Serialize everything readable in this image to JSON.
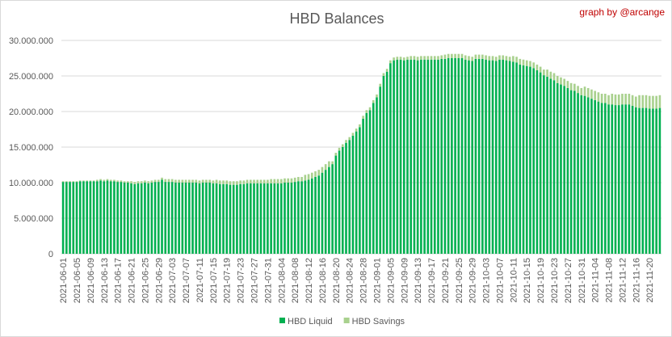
{
  "chart_data": {
    "type": "bar",
    "stacked": true,
    "title": "HBD Balances",
    "credit": "graph by @arcange",
    "xlabel": "",
    "ylabel": "",
    "ylim": [
      0,
      30000000
    ],
    "y_ticks": [
      "0",
      "5.000.000",
      "10.000.000",
      "15.000.000",
      "20.000.000",
      "25.000.000",
      "30.000.000"
    ],
    "y_tick_values": [
      0,
      5000000,
      10000000,
      15000000,
      20000000,
      25000000,
      30000000
    ],
    "x_tick_labels": [
      "2021-06-01",
      "2021-06-05",
      "2021-06-09",
      "2021-06-13",
      "2021-06-17",
      "2021-06-21",
      "2021-06-25",
      "2021-06-29",
      "2021-07-03",
      "2021-07-07",
      "2021-07-11",
      "2021-07-15",
      "2021-07-19",
      "2021-07-23",
      "2021-07-27",
      "2021-07-31",
      "2021-08-04",
      "2021-08-08",
      "2021-08-12",
      "2021-08-16",
      "2021-08-20",
      "2021-08-24",
      "2021-08-28",
      "2021-09-01",
      "2021-09-05",
      "2021-09-09",
      "2021-09-13",
      "2021-09-17",
      "2021-09-21",
      "2021-09-25",
      "2021-09-29",
      "2021-10-03",
      "2021-10-07",
      "2021-10-11",
      "2021-10-15",
      "2021-10-19",
      "2021-10-23",
      "2021-10-27",
      "2021-10-31",
      "2021-11-04",
      "2021-11-08",
      "2021-11-12",
      "2021-11-16",
      "2021-11-20"
    ],
    "x_tick_every": 4,
    "grid": true,
    "legend_position": "bottom",
    "series": [
      {
        "name": "HBD Liquid",
        "color": "#00b050",
        "values": [
          10100000.0,
          10100000.0,
          10100000.0,
          10100000.0,
          10100000.0,
          10200000.0,
          10200000.0,
          10200000.0,
          10200000.0,
          10200000.0,
          10200000.0,
          10300000.0,
          10200000.0,
          10300000.0,
          10200000.0,
          10200000.0,
          10100000.0,
          10100000.0,
          10000000.0,
          10000000.0,
          9900000.0,
          9800000.0,
          9900000.0,
          9900000.0,
          10000000.0,
          9900000.0,
          10000000.0,
          10100000.0,
          10100000.0,
          10400000.0,
          10100000.0,
          10100000.0,
          10100000.0,
          10000000.0,
          10000000.0,
          10000000.0,
          10000000.0,
          10000000.0,
          10000000.0,
          10000000.0,
          9900000.0,
          10000000.0,
          10000000.0,
          10000000.0,
          9900000.0,
          9900000.0,
          9800000.0,
          9800000.0,
          9800000.0,
          9700000.0,
          9700000.0,
          9700000.0,
          9800000.0,
          9800000.0,
          9900000.0,
          9900000.0,
          9900000.0,
          9900000.0,
          9900000.0,
          9900000.0,
          9900000.0,
          9900000.0,
          9900000.0,
          9900000.0,
          9900000.0,
          10000000.0,
          10000000.0,
          10000000.0,
          10100000.0,
          10200000.0,
          10200000.0,
          10300000.0,
          10400000.0,
          10600000.0,
          10800000.0,
          11000000.0,
          11400000.0,
          11800000.0,
          12200000.0,
          12600000.0,
          13800000.0,
          14500000.0,
          15000000.0,
          15600000.0,
          16000000.0,
          16600000.0,
          17200000.0,
          17800000.0,
          19000000.0,
          19800000.0,
          20200000.0,
          21200000.0,
          22000000.0,
          23500000.0,
          25000000.0,
          25600000.0,
          26800000.0,
          27200000.0,
          27300000.0,
          27300000.0,
          27200000.0,
          27300000.0,
          27300000.0,
          27300000.0,
          27200000.0,
          27300000.0,
          27300000.0,
          27300000.0,
          27300000.0,
          27300000.0,
          27300000.0,
          27400000.0,
          27400000.0,
          27500000.0,
          27500000.0,
          27500000.0,
          27500000.0,
          27500000.0,
          27300000.0,
          27200000.0,
          27100000.0,
          27400000.0,
          27400000.0,
          27400000.0,
          27300000.0,
          27200000.0,
          27200000.0,
          27100000.0,
          27300000.0,
          27300000.0,
          27200000.0,
          27100000.0,
          27000000.0,
          26900000.0,
          26600000.0,
          26500000.0,
          26400000.0,
          26300000.0,
          26100000.0,
          25800000.0,
          25500000.0,
          25100000.0,
          24900000.0,
          24600000.0,
          24400000.0,
          24000000.0,
          23800000.0,
          23600000.0,
          23300000.0,
          23000000.0,
          22900000.0,
          22600000.0,
          22300000.0,
          22200000.0,
          22000000.0,
          21800000.0,
          21600000.0,
          21400000.0,
          21200000.0,
          21200000.0,
          21000000.0,
          21000000.0,
          20900000.0,
          20900000.0,
          21000000.0,
          21000000.0,
          21000000.0,
          20800000.0,
          20600000.0,
          20500000.0,
          20500000.0,
          20500000.0,
          20400000.0,
          20400000.0,
          20400000.0,
          20500000.0
        ]
      },
      {
        "name": "HBD Savings",
        "color": "#a9d18e",
        "values": [
          100000.0,
          100000.0,
          100000.0,
          100000.0,
          100000.0,
          100000.0,
          100000.0,
          100000.0,
          100000.0,
          100000.0,
          200000.0,
          200000.0,
          200000.0,
          200000.0,
          200000.0,
          200000.0,
          200000.0,
          200000.0,
          200000.0,
          200000.0,
          300000.0,
          300000.0,
          300000.0,
          300000.0,
          300000.0,
          300000.0,
          300000.0,
          300000.0,
          300000.0,
          300000.0,
          400000.0,
          400000.0,
          400000.0,
          400000.0,
          400000.0,
          400000.0,
          400000.0,
          400000.0,
          400000.0,
          400000.0,
          400000.0,
          400000.0,
          400000.0,
          400000.0,
          400000.0,
          500000.0,
          500000.0,
          500000.0,
          500000.0,
          500000.0,
          500000.0,
          500000.0,
          500000.0,
          500000.0,
          500000.0,
          500000.0,
          500000.0,
          500000.0,
          500000.0,
          500000.0,
          500000.0,
          600000.0,
          600000.0,
          600000.0,
          600000.0,
          600000.0,
          600000.0,
          600000.0,
          600000.0,
          600000.0,
          600000.0,
          800000.0,
          800000.0,
          800000.0,
          800000.0,
          800000.0,
          800000.0,
          800000.0,
          800000.0,
          400000.0,
          400000.0,
          400000.0,
          400000.0,
          400000.0,
          400000.0,
          400000.0,
          400000.0,
          400000.0,
          400000.0,
          400000.0,
          400000.0,
          400000.0,
          400000.0,
          400000.0,
          400000.0,
          400000.0,
          400000.0,
          400000.0,
          400000.0,
          400000.0,
          400000.0,
          400000.0,
          500000.0,
          500000.0,
          500000.0,
          500000.0,
          500000.0,
          500000.0,
          500000.0,
          500000.0,
          500000.0,
          500000.0,
          600000.0,
          600000.0,
          600000.0,
          600000.0,
          600000.0,
          600000.0,
          600000.0,
          600000.0,
          600000.0,
          600000.0,
          600000.0,
          600000.0,
          600000.0,
          600000.0,
          600000.0,
          600000.0,
          600000.0,
          600000.0,
          600000.0,
          600000.0,
          800000.0,
          800000.0,
          800000.0,
          800000.0,
          800000.0,
          800000.0,
          800000.0,
          800000.0,
          800000.0,
          800000.0,
          1000000.0,
          1000000.0,
          1000000.0,
          1000000.0,
          1000000.0,
          1000000.0,
          1000000.0,
          1000000.0,
          1000000.0,
          1000000.0,
          1000000.0,
          1300000.0,
          1300000.0,
          1300000.0,
          1300000.0,
          1300000.0,
          1300000.0,
          1300000.0,
          1300000.0,
          1500000.0,
          1500000.0,
          1500000.0,
          1500000.0,
          1500000.0,
          1500000.0,
          1500000.0,
          1500000.0,
          1800000.0,
          1800000.0,
          1800000.0,
          1800000.0,
          1800000.0,
          1800000.0,
          1800000.0
        ]
      }
    ]
  }
}
